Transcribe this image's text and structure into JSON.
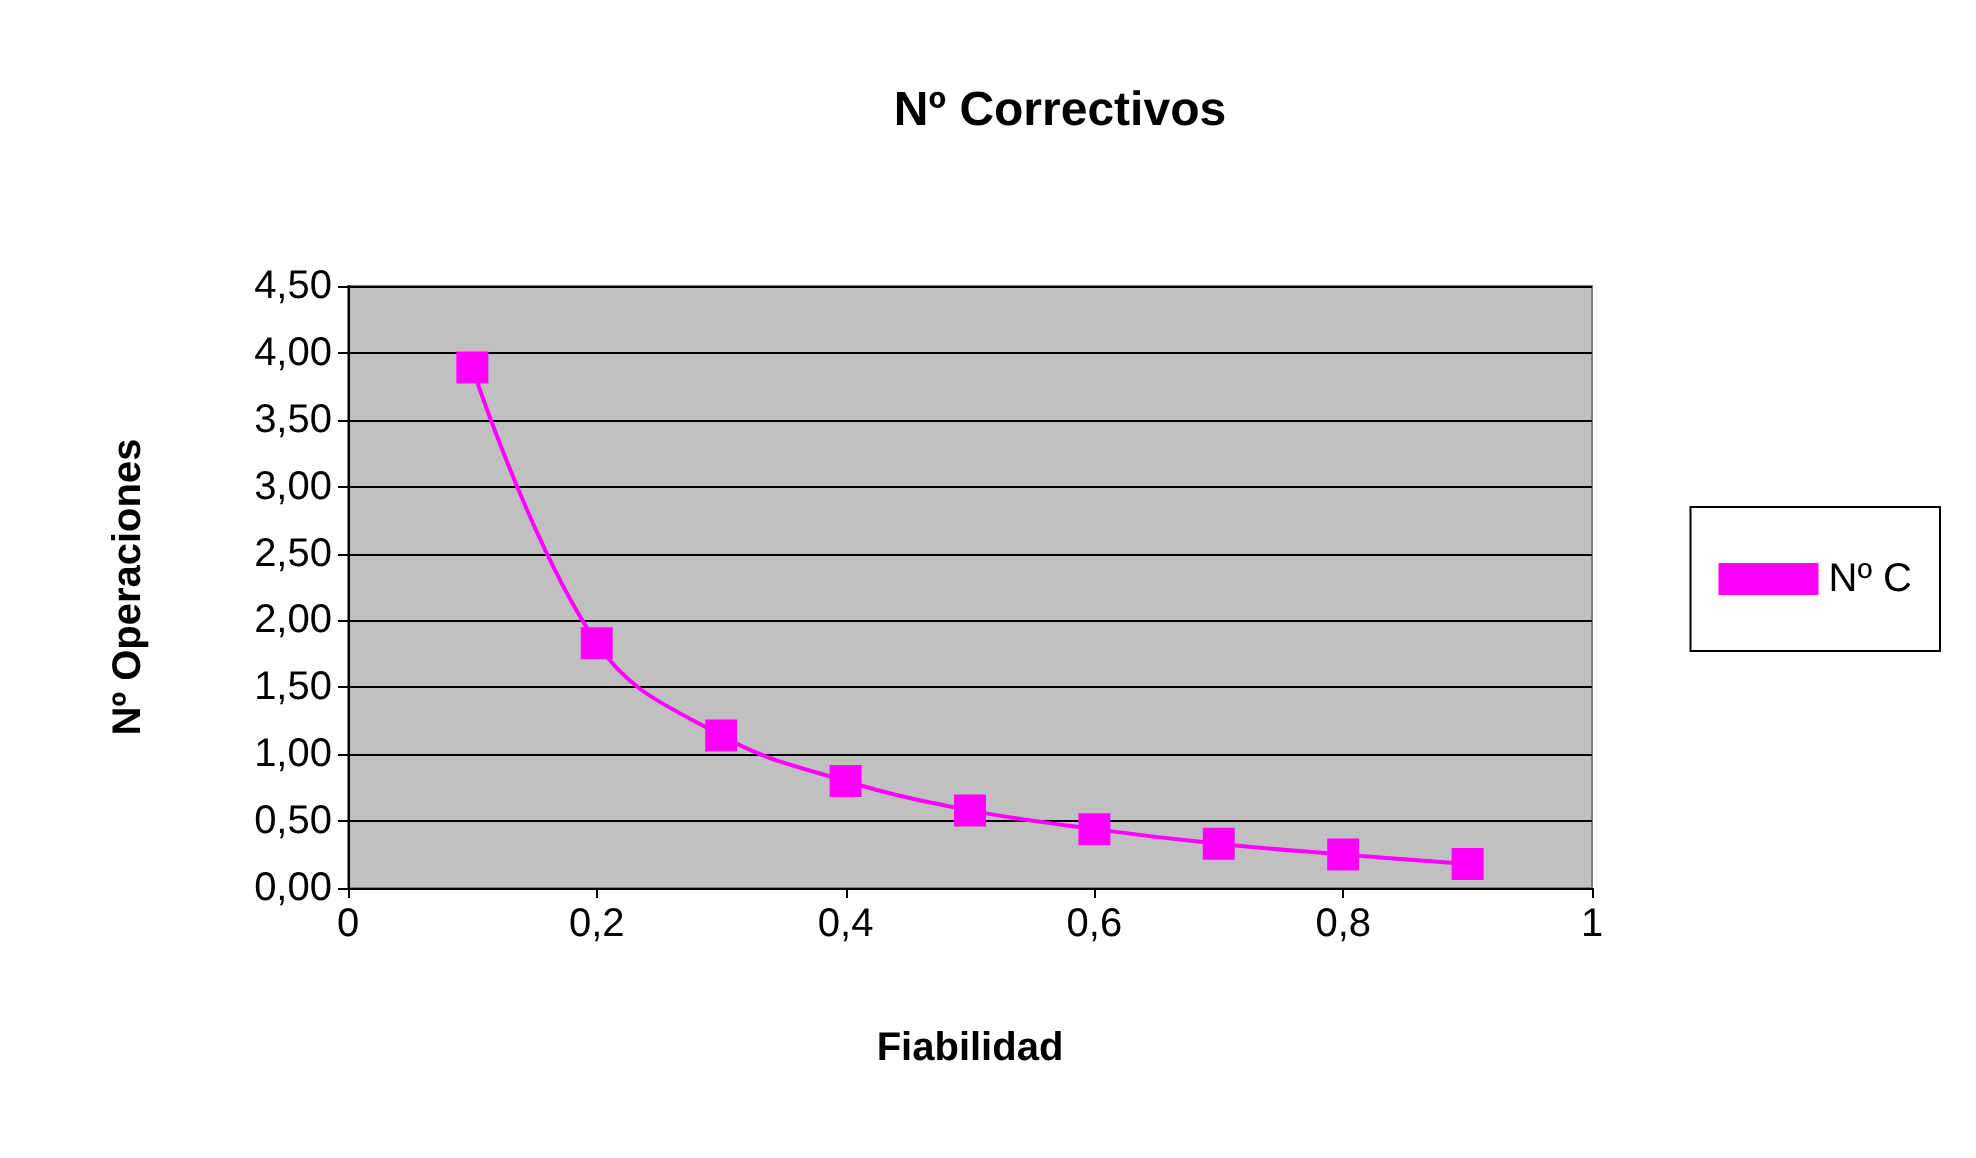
{
  "chart_data": {
    "type": "line",
    "title": "Nº Correctivos",
    "xlabel": "Fiabilidad",
    "ylabel": "Nº Operaciones",
    "x": [
      0.1,
      0.2,
      0.3,
      0.4,
      0.5,
      0.6,
      0.7,
      0.8,
      0.9
    ],
    "series": [
      {
        "name": "Nº C",
        "color": "#ff00ff",
        "values": [
          3.89,
          1.83,
          1.14,
          0.8,
          0.58,
          0.44,
          0.33,
          0.25,
          0.18
        ]
      }
    ],
    "xlim": [
      0,
      1
    ],
    "xticks": [
      0,
      {
        "value": 0.2,
        "label": "0,2"
      },
      {
        "value": 0.4,
        "label": "0,4"
      },
      {
        "value": 0.6,
        "label": "0,6"
      },
      {
        "value": 0.8,
        "label": "0,8"
      },
      1
    ],
    "ylim": [
      0,
      4.5
    ],
    "yticks": [
      {
        "value": 0,
        "label": "0,00"
      },
      {
        "value": 0.5,
        "label": "0,50"
      },
      {
        "value": 1,
        "label": "1,00"
      },
      {
        "value": 1.5,
        "label": "1,50"
      },
      {
        "value": 2,
        "label": "2,00"
      },
      {
        "value": 2.5,
        "label": "2,50"
      },
      {
        "value": 3,
        "label": "3,00"
      },
      {
        "value": 3.5,
        "label": "3,50"
      },
      {
        "value": 4,
        "label": "4,00"
      },
      {
        "value": 4.5,
        "label": "4,50"
      }
    ],
    "grid": "y",
    "legend": "right",
    "marker": "square",
    "line_style": "solid"
  }
}
